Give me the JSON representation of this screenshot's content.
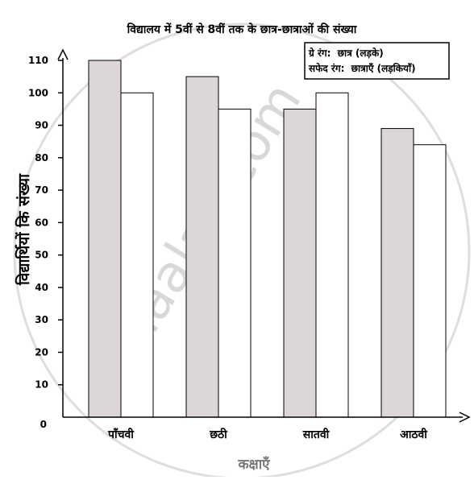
{
  "chart_data": {
    "type": "bar",
    "title": "विद्यालय में 5वीं से 8वीं तक के छात्र-छात्राओं की संख्या",
    "xlabel": "कक्षाएँ",
    "ylabel": "विद्यार्थियों कि संख्या",
    "categories": [
      "पाँचवी",
      "छठी",
      "सातवी",
      "आठवी"
    ],
    "series": [
      {
        "name": "छात्र (लड़के)",
        "legend_prefix": "ग्रे रंग:",
        "color": "#dcd6d6",
        "values": [
          110,
          105,
          95,
          89
        ]
      },
      {
        "name": "छात्राएँ (लड़कियाँ)",
        "legend_prefix": "सफेद रंग:",
        "color": "#ffffff",
        "values": [
          100,
          95,
          100,
          84
        ]
      }
    ],
    "yticks": [
      0,
      10,
      20,
      30,
      40,
      50,
      60,
      70,
      80,
      90,
      100,
      110
    ],
    "ylim": [
      0,
      115
    ],
    "grid": false,
    "legend_position": "top-right"
  },
  "watermark": "shaalaa.com"
}
